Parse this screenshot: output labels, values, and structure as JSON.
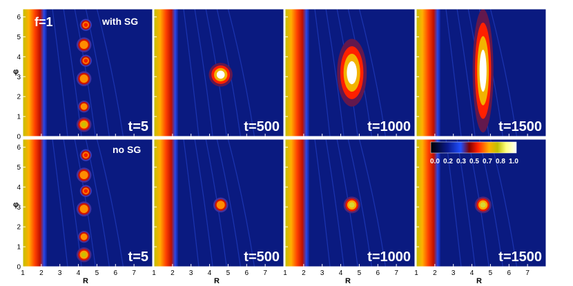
{
  "figure": {
    "corner_label": "f=1",
    "row_labels": [
      "with SG",
      "no SG"
    ],
    "xlabel": "R",
    "ylabel": "φ",
    "colorbar_ticks": [
      "0.0",
      "0.2",
      "0.3",
      "0.5",
      "0.7",
      "0.8",
      "1.0"
    ]
  },
  "chart_data": {
    "type": "heatmap",
    "xlabel": "R",
    "ylabel": "φ",
    "xlim": [
      1,
      8
    ],
    "ylim": [
      0,
      6.4
    ],
    "x_ticks": [
      1,
      2,
      3,
      4,
      5,
      6,
      7
    ],
    "y_ticks": [
      0,
      1,
      2,
      3,
      4,
      5,
      6
    ],
    "times": [
      "t=5",
      "t=500",
      "t=1000",
      "t=1500"
    ],
    "rows": [
      "with SG",
      "no SG"
    ],
    "colorbar": {
      "min": 0.0,
      "max": 1.0,
      "ticks": [
        0.0,
        0.2,
        0.3,
        0.5,
        0.7,
        0.8,
        1.0
      ]
    },
    "colors": {
      "background": "#0a1a80",
      "inner_disk": "#ffd000",
      "clump_core": "#ffff80",
      "clump_edge": "#ff3000"
    },
    "inner_edge": {
      "r": 1.7,
      "brightness": 0.75
    },
    "panels": [
      {
        "row": "with SG",
        "time": "t=5",
        "clumps": [
          {
            "r": 4.3,
            "phi": 0.6,
            "size": 0.25,
            "peak": 0.8
          },
          {
            "r": 4.3,
            "phi": 1.5,
            "size": 0.2,
            "peak": 0.7
          },
          {
            "r": 4.3,
            "phi": 2.9,
            "size": 0.25,
            "peak": 0.7
          },
          {
            "r": 4.4,
            "phi": 3.8,
            "size": 0.2,
            "peak": 0.6
          },
          {
            "r": 4.3,
            "phi": 4.6,
            "size": 0.25,
            "peak": 0.7
          },
          {
            "r": 4.4,
            "phi": 5.6,
            "size": 0.2,
            "peak": 0.6
          }
        ]
      },
      {
        "row": "with SG",
        "time": "t=500",
        "clumps": [
          {
            "r": 4.6,
            "phi": 3.1,
            "size": 0.4,
            "peak": 1.0
          }
        ]
      },
      {
        "row": "with SG",
        "time": "t=1000",
        "clumps": [
          {
            "r": 4.6,
            "phi": 3.2,
            "size": 0.5,
            "extent_phi": 3.4,
            "peak": 1.0
          }
        ]
      },
      {
        "row": "with SG",
        "time": "t=1500",
        "clumps": [
          {
            "r": 4.6,
            "phi": 3.3,
            "size": 0.35,
            "extent_phi": 6.2,
            "peak": 1.0
          }
        ]
      },
      {
        "row": "no SG",
        "time": "t=5",
        "clumps": [
          {
            "r": 4.3,
            "phi": 0.6,
            "size": 0.25,
            "peak": 0.8
          },
          {
            "r": 4.3,
            "phi": 1.5,
            "size": 0.2,
            "peak": 0.7
          },
          {
            "r": 4.3,
            "phi": 2.9,
            "size": 0.25,
            "peak": 0.7
          },
          {
            "r": 4.4,
            "phi": 3.8,
            "size": 0.2,
            "peak": 0.6
          },
          {
            "r": 4.3,
            "phi": 4.6,
            "size": 0.25,
            "peak": 0.7
          },
          {
            "r": 4.4,
            "phi": 5.6,
            "size": 0.2,
            "peak": 0.6
          }
        ]
      },
      {
        "row": "no SG",
        "time": "t=500",
        "clumps": [
          {
            "r": 4.6,
            "phi": 3.1,
            "size": 0.25,
            "peak": 0.7
          }
        ]
      },
      {
        "row": "no SG",
        "time": "t=1000",
        "clumps": [
          {
            "r": 4.6,
            "phi": 3.1,
            "size": 0.28,
            "peak": 0.85
          }
        ]
      },
      {
        "row": "no SG",
        "time": "t=1500",
        "clumps": [
          {
            "r": 4.6,
            "phi": 3.1,
            "size": 0.28,
            "peak": 0.85
          }
        ]
      }
    ]
  }
}
